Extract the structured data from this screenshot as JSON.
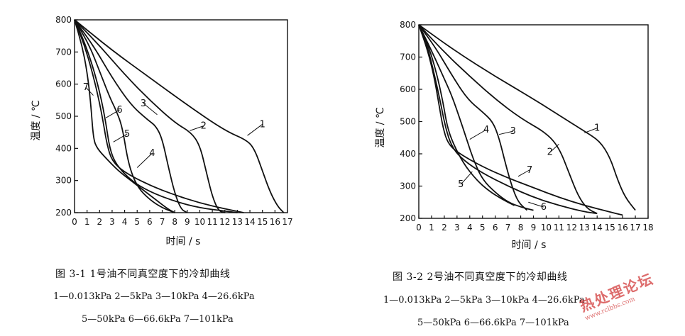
{
  "chart_data": [
    {
      "type": "line",
      "caption": "图 3-1   1号油不同真空度下的冷却曲线",
      "legend_line1": "1—0.013kPa   2—5kPa   3—10kPa   4—26.6kPa",
      "legend_line2": "5—50kPa   6—66.6kPa   7—101kPa",
      "xlabel": "时间 / s",
      "ylabel": "温度 / ℃",
      "xlim": [
        0,
        17
      ],
      "ylim": [
        200,
        800
      ],
      "xticks": [
        0,
        1,
        2,
        3,
        4,
        5,
        6,
        7,
        8,
        9,
        10,
        11,
        12,
        13,
        14,
        15,
        16,
        17
      ],
      "yticks": [
        200,
        300,
        400,
        500,
        600,
        700,
        800
      ],
      "grid": false,
      "series": [
        {
          "name": "1",
          "points": [
            [
              0,
              800
            ],
            [
              3,
              705
            ],
            [
              6,
              620
            ],
            [
              9,
              535
            ],
            [
              12,
              455
            ],
            [
              13.8,
              425
            ],
            [
              14.4,
              395
            ],
            [
              15,
              330
            ],
            [
              15.6,
              265
            ],
            [
              16.2,
              220
            ],
            [
              16.7,
              200
            ]
          ]
        },
        {
          "name": "2",
          "points": [
            [
              0,
              800
            ],
            [
              2,
              720
            ],
            [
              4,
              630
            ],
            [
              6,
              550
            ],
            [
              8,
              480
            ],
            [
              9.3,
              450
            ],
            [
              10,
              410
            ],
            [
              10.5,
              330
            ],
            [
              11,
              250
            ],
            [
              11.5,
              205
            ],
            [
              12,
              200
            ]
          ]
        },
        {
          "name": "3",
          "points": [
            [
              0,
              800
            ],
            [
              1.5,
              720
            ],
            [
              3,
              620
            ],
            [
              4.5,
              535
            ],
            [
              5.8,
              490
            ],
            [
              6.5,
              470
            ],
            [
              7,
              430
            ],
            [
              7.5,
              340
            ],
            [
              8,
              260
            ],
            [
              8.5,
              210
            ],
            [
              9,
              200
            ]
          ]
        },
        {
          "name": "4",
          "points": [
            [
              0,
              800
            ],
            [
              1.2,
              720
            ],
            [
              2,
              640
            ],
            [
              2.8,
              560
            ],
            [
              3.3,
              520
            ],
            [
              3.8,
              470
            ],
            [
              4.3,
              350
            ],
            [
              5,
              280
            ],
            [
              6,
              240
            ],
            [
              7,
              215
            ],
            [
              8,
              200
            ]
          ]
        },
        {
          "name": "5",
          "points": [
            [
              0,
              800
            ],
            [
              0.8,
              730
            ],
            [
              1.5,
              650
            ],
            [
              2.1,
              560
            ],
            [
              2.5,
              480
            ],
            [
              2.8,
              400
            ],
            [
              3.3,
              350
            ],
            [
              4.5,
              300
            ],
            [
              6,
              265
            ],
            [
              8,
              235
            ],
            [
              10,
              215
            ],
            [
              12,
              205
            ],
            [
              13,
              200
            ]
          ]
        },
        {
          "name": "6",
          "points": [
            [
              0,
              800
            ],
            [
              0.8,
              720
            ],
            [
              1.4,
              640
            ],
            [
              1.9,
              560
            ],
            [
              2.3,
              480
            ],
            [
              2.6,
              410
            ],
            [
              3,
              360
            ],
            [
              4,
              325
            ],
            [
              6,
              285
            ],
            [
              8,
              255
            ],
            [
              10,
              230
            ],
            [
              12,
              212
            ],
            [
              13.5,
              200
            ]
          ]
        },
        {
          "name": "7",
          "points": [
            [
              0,
              800
            ],
            [
              0.6,
              720
            ],
            [
              1,
              640
            ],
            [
              1.3,
              540
            ],
            [
              1.5,
              430
            ],
            [
              1.8,
              400
            ],
            [
              2.5,
              370
            ],
            [
              3.5,
              330
            ],
            [
              4.5,
              300
            ],
            [
              5.5,
              270
            ],
            [
              6.5,
              240
            ],
            [
              7.5,
              210
            ],
            [
              8,
              200
            ]
          ]
        }
      ],
      "labels": [
        {
          "text": "1",
          "x": 15.0,
          "y": 475,
          "ax": 13.8,
          "ay": 440
        },
        {
          "text": "2",
          "x": 10.3,
          "y": 470,
          "ax": 9.2,
          "ay": 455
        },
        {
          "text": "3",
          "x": 5.5,
          "y": 540,
          "ax": 6.6,
          "ay": 505
        },
        {
          "text": "4",
          "x": 6.2,
          "y": 385,
          "ax": 5.0,
          "ay": 340
        },
        {
          "text": "5",
          "x": 4.2,
          "y": 445,
          "ax": 3.1,
          "ay": 420
        },
        {
          "text": "6",
          "x": 3.6,
          "y": 520,
          "ax": 2.5,
          "ay": 495
        },
        {
          "text": "7",
          "x": 0.9,
          "y": 590,
          "ax": 1.5,
          "ay": 565
        }
      ]
    },
    {
      "type": "line",
      "caption": "图 3-2   2号油不同真空度下的冷却曲线",
      "legend_line1": "1—0.013kPa   2—5kPa   3—10kPa   4—26.6kPa",
      "legend_line2": "5—50kPa   6—66.6kPa   7—101kPa",
      "xlabel": "时间 / s",
      "ylabel": "温度 / ℃",
      "xlim": [
        0,
        18
      ],
      "ylim": [
        200,
        800
      ],
      "xticks": [
        0,
        1,
        2,
        3,
        4,
        5,
        6,
        7,
        8,
        9,
        10,
        11,
        12,
        13,
        14,
        15,
        16,
        17,
        18
      ],
      "yticks": [
        200,
        300,
        400,
        500,
        600,
        700,
        800
      ],
      "grid": false,
      "series": [
        {
          "name": "1",
          "points": [
            [
              0,
              800
            ],
            [
              3,
              715
            ],
            [
              6,
              640
            ],
            [
              9,
              570
            ],
            [
              11,
              520
            ],
            [
              13,
              470
            ],
            [
              14.2,
              440
            ],
            [
              15,
              390
            ],
            [
              15.6,
              320
            ],
            [
              16.2,
              265
            ],
            [
              17,
              225
            ]
          ]
        },
        {
          "name": "2",
          "points": [
            [
              0,
              800
            ],
            [
              2,
              715
            ],
            [
              4,
              640
            ],
            [
              6,
              570
            ],
            [
              8,
              510
            ],
            [
              10,
              465
            ],
            [
              11,
              420
            ],
            [
              11.8,
              340
            ],
            [
              12.5,
              270
            ],
            [
              13.2,
              230
            ],
            [
              14,
              215
            ]
          ]
        },
        {
          "name": "3",
          "points": [
            [
              0,
              800
            ],
            [
              1.3,
              730
            ],
            [
              2.5,
              650
            ],
            [
              3.8,
              570
            ],
            [
              5,
              530
            ],
            [
              5.8,
              500
            ],
            [
              6.3,
              450
            ],
            [
              6.8,
              370
            ],
            [
              7.3,
              300
            ],
            [
              7.8,
              250
            ],
            [
              8.5,
              225
            ]
          ]
        },
        {
          "name": "4",
          "points": [
            [
              0,
              800
            ],
            [
              1,
              720
            ],
            [
              1.8,
              650
            ],
            [
              2.6,
              580
            ],
            [
              3.3,
              500
            ],
            [
              3.8,
              440
            ],
            [
              4.3,
              380
            ],
            [
              5,
              320
            ],
            [
              6,
              280
            ],
            [
              7,
              250
            ],
            [
              8,
              235
            ],
            [
              9,
              225
            ]
          ]
        },
        {
          "name": "5",
          "points": [
            [
              0,
              800
            ],
            [
              0.8,
              730
            ],
            [
              1.4,
              650
            ],
            [
              1.9,
              560
            ],
            [
              2.2,
              490
            ],
            [
              2.6,
              440
            ],
            [
              3.5,
              370
            ],
            [
              4.5,
              320
            ],
            [
              5.5,
              285
            ],
            [
              6.5,
              260
            ],
            [
              7.5,
              240
            ]
          ]
        },
        {
          "name": "6",
          "points": [
            [
              0,
              800
            ],
            [
              0.7,
              730
            ],
            [
              1.2,
              650
            ],
            [
              1.7,
              560
            ],
            [
              2.1,
              480
            ],
            [
              2.6,
              420
            ],
            [
              3.5,
              380
            ],
            [
              5,
              340
            ],
            [
              7,
              300
            ],
            [
              9,
              265
            ],
            [
              11,
              240
            ],
            [
              13,
              220
            ],
            [
              14,
              215
            ]
          ]
        },
        {
          "name": "7",
          "points": [
            [
              0,
              800
            ],
            [
              0.7,
              720
            ],
            [
              1.2,
              640
            ],
            [
              1.6,
              550
            ],
            [
              1.9,
              480
            ],
            [
              2.3,
              430
            ],
            [
              3.2,
              400
            ],
            [
              5,
              360
            ],
            [
              7,
              325
            ],
            [
              9,
              295
            ],
            [
              11,
              265
            ],
            [
              13,
              240
            ],
            [
              15,
              220
            ],
            [
              16,
              210
            ]
          ]
        }
      ],
      "labels": [
        {
          "text": "1",
          "x": 14.0,
          "y": 480,
          "ax": 13.0,
          "ay": 465
        },
        {
          "text": "2",
          "x": 10.3,
          "y": 405,
          "ax": 11.0,
          "ay": 430
        },
        {
          "text": "3",
          "x": 7.4,
          "y": 470,
          "ax": 6.3,
          "ay": 460
        },
        {
          "text": "4",
          "x": 5.3,
          "y": 475,
          "ax": 4.0,
          "ay": 445
        },
        {
          "text": "5",
          "x": 3.3,
          "y": 305,
          "ax": 4.2,
          "ay": 345
        },
        {
          "text": "6",
          "x": 9.8,
          "y": 235,
          "ax": 8.6,
          "ay": 250
        },
        {
          "text": "7",
          "x": 8.7,
          "y": 350,
          "ax": 7.8,
          "ay": 330
        }
      ]
    }
  ],
  "watermark": {
    "text_big": "热处理论坛",
    "text_small": "www.rclbbs.com"
  }
}
